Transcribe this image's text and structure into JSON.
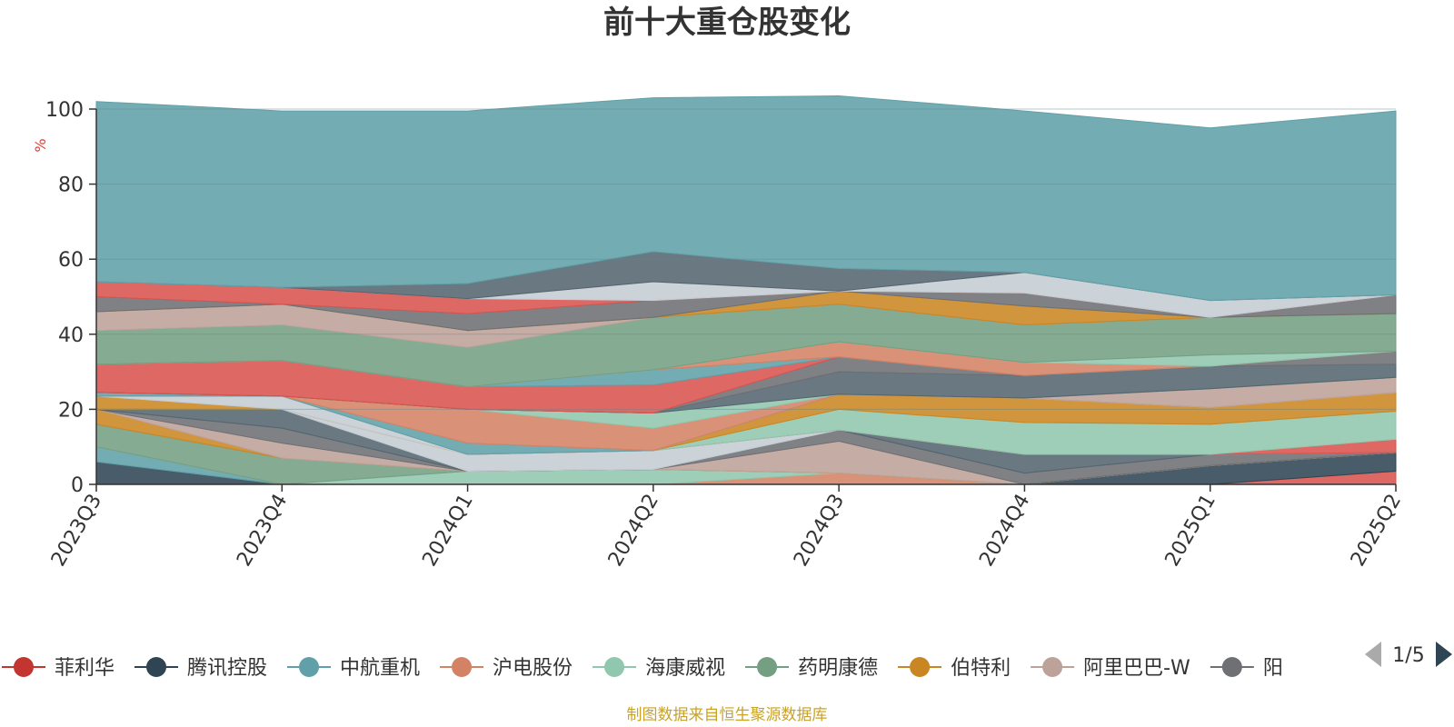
{
  "chart_data": {
    "type": "area",
    "title": "前十大重仓股变化",
    "ylabel": "%",
    "xlabel": "",
    "ylim": [
      0,
      100
    ],
    "yticks": [
      0,
      20,
      40,
      60,
      80,
      100
    ],
    "grid": true,
    "categories": [
      "2023Q3",
      "2023Q4",
      "2024Q1",
      "2024Q2",
      "2024Q3",
      "2024Q4",
      "2025Q1",
      "2025Q2"
    ],
    "series": [
      {
        "name": "菲利华",
        "color": "#d9534f",
        "values": [
          0,
          0,
          0,
          0,
          0,
          0,
          0,
          3.5
        ]
      },
      {
        "name": "腾讯控股",
        "color": "#2f4554",
        "values": [
          6,
          0,
          0,
          0,
          0,
          0,
          5,
          5
        ]
      },
      {
        "name": "中航重机",
        "color": "#61a0a8",
        "values": [
          4,
          0,
          0,
          0,
          0,
          0,
          0,
          0
        ]
      },
      {
        "name": "沪电股份",
        "color": "#d48265",
        "values": [
          0,
          0,
          0,
          0,
          3,
          0,
          0,
          0
        ]
      },
      {
        "name": "海康威视",
        "color": "#91c7ae",
        "values": [
          0,
          0,
          3.5,
          4,
          0,
          0,
          0,
          0
        ]
      },
      {
        "name": "药明康德",
        "color": "#749f83",
        "values": [
          6,
          7,
          0,
          0,
          0,
          0,
          0,
          0
        ]
      },
      {
        "name": "伯特利",
        "color": "#ca8622",
        "values": [
          4,
          0,
          0,
          0,
          0,
          0,
          0,
          0
        ]
      },
      {
        "name": "阿里巴巴-W",
        "color": "#bda29a",
        "values": [
          0,
          4,
          0,
          0,
          8.5,
          0,
          0,
          0
        ]
      },
      {
        "name": "",
        "color": "#6e7074",
        "values": [
          0,
          4,
          0,
          0,
          3,
          3,
          3,
          0
        ]
      },
      {
        "name": "",
        "color": "#546570",
        "values": [
          0,
          5,
          0,
          0,
          0,
          5,
          0,
          0
        ]
      },
      {
        "name": "",
        "color": "#c4ccd3",
        "values": [
          0,
          0,
          4.5,
          5,
          0,
          0,
          0,
          0
        ]
      },
      {
        "name": "",
        "color": "#d9534f",
        "values": [
          0,
          0,
          0,
          0,
          0,
          0,
          0,
          3.5
        ]
      },
      {
        "name": "",
        "color": "#91c7ae",
        "values": [
          0,
          0,
          0,
          0,
          5.5,
          8.5,
          8,
          7.5
        ]
      },
      {
        "name": "",
        "color": "#ca8622",
        "values": [
          3.5,
          0,
          0,
          0,
          4,
          6.5,
          4.5,
          5
        ]
      },
      {
        "name": "",
        "color": "#c4ccd3",
        "values": [
          0,
          3.5,
          0,
          0,
          0,
          0,
          0,
          0
        ]
      },
      {
        "name": "",
        "color": "#bda29a",
        "values": [
          0,
          0,
          0,
          0,
          0,
          0,
          5,
          4
        ]
      },
      {
        "name": "",
        "color": "#61a0a8",
        "values": [
          1,
          0,
          3,
          0,
          0,
          0,
          0,
          0
        ]
      },
      {
        "name": "",
        "color": "#d48265",
        "values": [
          0,
          0,
          9,
          6,
          0,
          0,
          0,
          0
        ]
      },
      {
        "name": "",
        "color": "#91c7ae",
        "values": [
          0,
          0,
          0,
          4,
          0,
          0,
          0,
          0
        ]
      },
      {
        "name": "",
        "color": "#546570",
        "values": [
          0,
          0,
          0,
          0,
          6,
          6,
          6,
          3.5
        ]
      },
      {
        "name": "",
        "color": "#6e7074",
        "values": [
          0,
          0,
          0,
          0,
          4,
          0,
          0,
          3.5
        ]
      },
      {
        "name": "",
        "color": "#d9534f",
        "values": [
          7.5,
          9.5,
          6,
          7.5,
          0,
          0,
          0,
          0
        ]
      },
      {
        "name": "",
        "color": "#61a0a8",
        "values": [
          0,
          0,
          0,
          4,
          0,
          0,
          0,
          0
        ]
      },
      {
        "name": "",
        "color": "#d48265",
        "values": [
          0,
          0,
          0,
          0,
          4,
          3.5,
          0,
          0
        ]
      },
      {
        "name": "",
        "color": "#91c7ae",
        "values": [
          0,
          0,
          0,
          0,
          0,
          0,
          3,
          0
        ]
      },
      {
        "name": "",
        "color": "#749f83",
        "values": [
          9,
          9.5,
          10.5,
          14,
          10,
          10,
          10,
          10
        ]
      },
      {
        "name": "",
        "color": "#bda29a",
        "values": [
          5,
          5.5,
          4.5,
          0,
          0,
          0,
          0,
          0
        ]
      },
      {
        "name": "",
        "color": "#ca8622",
        "values": [
          0,
          0,
          0,
          0,
          3.5,
          5,
          0,
          0
        ]
      },
      {
        "name": "",
        "color": "#6e7074",
        "values": [
          4,
          0,
          4.5,
          4.5,
          0,
          3.5,
          0,
          5
        ]
      },
      {
        "name": "",
        "color": "#d9534f",
        "values": [
          4,
          4.5,
          4,
          0,
          0,
          0,
          0,
          0
        ]
      },
      {
        "name": "",
        "color": "#c4ccd3",
        "values": [
          0,
          0,
          0,
          5,
          0,
          5.5,
          4.5,
          0
        ]
      },
      {
        "name": "",
        "color": "#546570",
        "values": [
          0,
          0,
          4,
          8,
          6,
          0,
          0,
          0
        ]
      },
      {
        "name": "",
        "color": "#61a0a8",
        "values": [
          48,
          47,
          46,
          41,
          46,
          43,
          46,
          49
        ]
      }
    ]
  },
  "legend": {
    "items": [
      {
        "label": "菲利华",
        "color": "#c23531"
      },
      {
        "label": "腾讯控股",
        "color": "#2f4554"
      },
      {
        "label": "中航重机",
        "color": "#61a0a8"
      },
      {
        "label": "沪电股份",
        "color": "#d48265"
      },
      {
        "label": "海康威视",
        "color": "#91c7ae"
      },
      {
        "label": "药明康德",
        "color": "#749f83"
      },
      {
        "label": "伯特利",
        "color": "#ca8622"
      },
      {
        "label": "阿里巴巴-W",
        "color": "#bda29a"
      },
      {
        "label": "阳",
        "color": "#6e7074"
      }
    ],
    "page": "1/5",
    "prev_icon": "triangle-left-icon",
    "next_icon": "triangle-right-icon"
  },
  "footer": {
    "note": "制图数据来自恒生聚源数据库"
  }
}
